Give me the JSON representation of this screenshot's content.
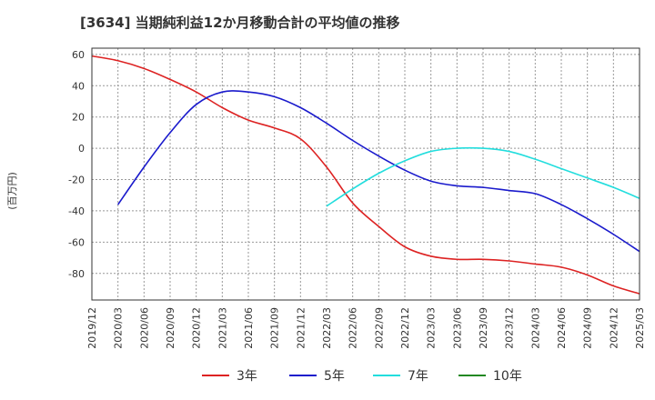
{
  "chart_data": {
    "type": "line",
    "title": "[3634]  当期純利益12か月移動合計の平均値の推移",
    "ylabel": "(百万円)",
    "xlabel": "",
    "ylim": [
      -97,
      64
    ],
    "yticks": [
      60,
      40,
      20,
      0,
      -20,
      -40,
      -60,
      -80
    ],
    "xticks": [
      "2019/12",
      "2020/03",
      "2020/06",
      "2020/09",
      "2020/12",
      "2021/03",
      "2021/06",
      "2021/09",
      "2021/12",
      "2022/03",
      "2022/06",
      "2022/09",
      "2022/12",
      "2023/03",
      "2023/06",
      "2023/09",
      "2023/12",
      "2024/03",
      "2024/06",
      "2024/09",
      "2024/12",
      "2025/03"
    ],
    "grid": true,
    "legend_position": "bottom",
    "series": [
      {
        "name": "3年",
        "color": "#dd2222",
        "values": [
          59,
          56,
          51,
          44,
          36,
          26,
          18,
          13,
          6,
          -12,
          -35,
          -50,
          -63,
          -69,
          -71,
          -71,
          -72,
          -74,
          -76,
          -81,
          -88,
          -93
        ]
      },
      {
        "name": "5年",
        "color": "#1a1acc",
        "values": [
          null,
          -36,
          -12,
          10,
          28,
          36,
          36,
          33,
          26,
          16,
          5,
          -5,
          -14,
          -21,
          -24,
          -25,
          -27,
          -29,
          -36,
          -45,
          -55,
          -66
        ]
      },
      {
        "name": "7年",
        "color": "#22dddd",
        "values": [
          null,
          null,
          null,
          null,
          null,
          null,
          null,
          null,
          null,
          -37,
          -26,
          -16,
          -8,
          -2,
          0,
          0,
          -2,
          -7,
          -13,
          -19,
          -25,
          -32
        ]
      },
      {
        "name": "10年",
        "color": "#228822",
        "values": []
      }
    ]
  }
}
